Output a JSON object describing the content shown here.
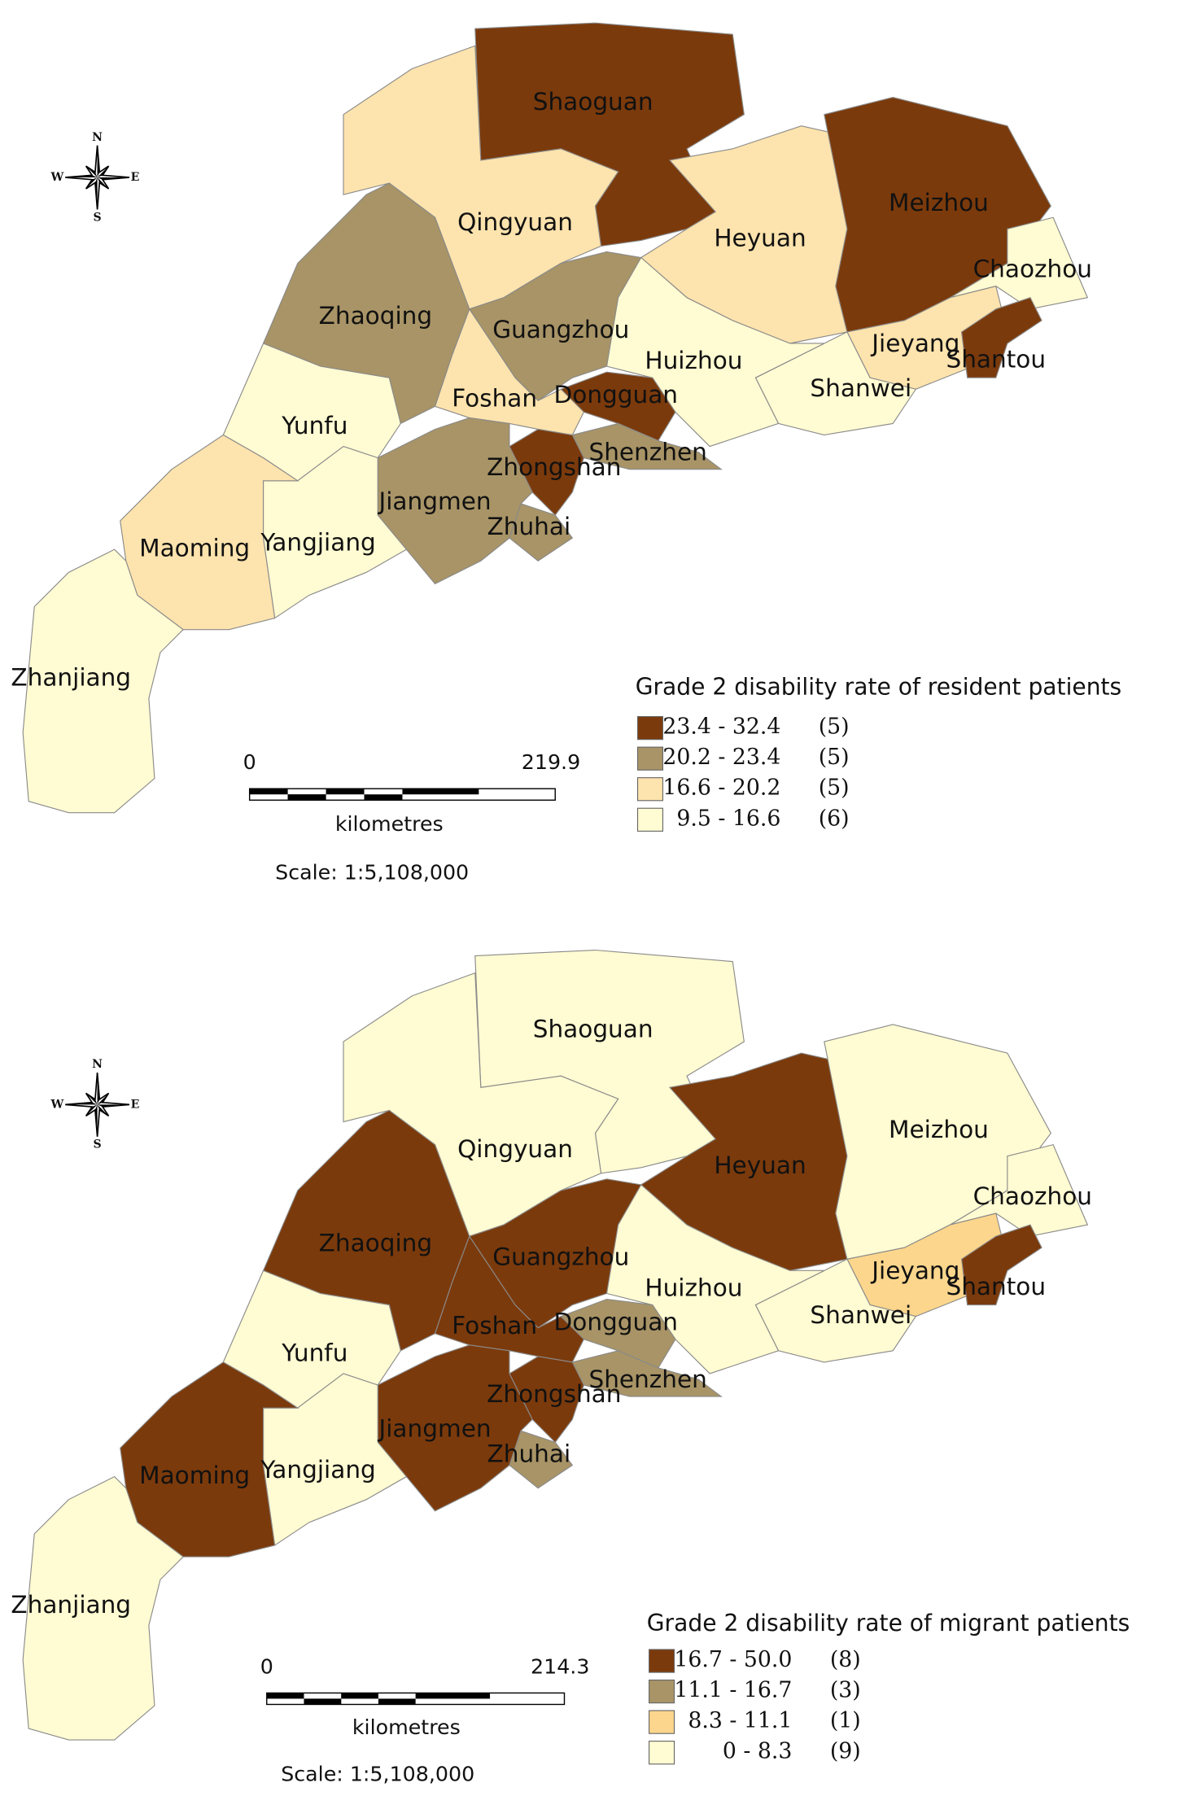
{
  "compass": {
    "n": "N",
    "s": "S",
    "e": "E",
    "w": "W"
  },
  "maps": [
    {
      "legend": {
        "title": "Grade 2 disability rate of resident patients",
        "entries": [
          {
            "range": "23.4 - 32.4",
            "count": "(5)",
            "color": "#7b3a0c"
          },
          {
            "range": "20.2 - 23.4",
            "count": "(5)",
            "color": "#a89466"
          },
          {
            "range": "16.6 - 20.2",
            "count": "(5)",
            "color": "#fde3ad"
          },
          {
            "range": "9.5 - 16.6",
            "count": "(6)",
            "color": "#fffbd2"
          }
        ]
      },
      "scale_bar": {
        "start": "0",
        "end": "219.9",
        "unit": "kilometres",
        "scale": "Scale: 1:5,108,000"
      },
      "regions": [
        {
          "name": "Shaoguan",
          "class": 0
        },
        {
          "name": "Qingyuan",
          "class": 2
        },
        {
          "name": "Heyuan",
          "class": 2
        },
        {
          "name": "Meizhou",
          "class": 0
        },
        {
          "name": "Chaozhou",
          "class": 3
        },
        {
          "name": "Jieyang",
          "class": 2
        },
        {
          "name": "Shantou",
          "class": 0
        },
        {
          "name": "Shanwei",
          "class": 3
        },
        {
          "name": "Huizhou",
          "class": 3
        },
        {
          "name": "Guangzhou",
          "class": 1
        },
        {
          "name": "Dongguan",
          "class": 0
        },
        {
          "name": "Shenzhen",
          "class": 1
        },
        {
          "name": "Foshan",
          "class": 2
        },
        {
          "name": "Zhaoqing",
          "class": 1
        },
        {
          "name": "Zhongshan",
          "class": 0
        },
        {
          "name": "Zhuhai",
          "class": 1
        },
        {
          "name": "Jiangmen",
          "class": 1
        },
        {
          "name": "Yunfu",
          "class": 3
        },
        {
          "name": "Yangjiang",
          "class": 3
        },
        {
          "name": "Maoming",
          "class": 2
        },
        {
          "name": "Zhanjiang",
          "class": 3
        }
      ]
    },
    {
      "legend": {
        "title": "Grade 2 disability rate of migrant patients",
        "entries": [
          {
            "range": "16.7 - 50.0",
            "count": "(8)",
            "color": "#7b3a0c"
          },
          {
            "range": "11.1 - 16.7",
            "count": "(3)",
            "color": "#a89466"
          },
          {
            "range": "8.3 - 11.1",
            "count": "(1)",
            "color": "#fcd68c"
          },
          {
            "range": "0 - 8.3",
            "count": "(9)",
            "color": "#fffbd2"
          }
        ]
      },
      "scale_bar": {
        "start": "0",
        "end": "214.3",
        "unit": "kilometres",
        "scale": "Scale: 1:5,108,000"
      },
      "regions": [
        {
          "name": "Shaoguan",
          "class": 3
        },
        {
          "name": "Qingyuan",
          "class": 3
        },
        {
          "name": "Heyuan",
          "class": 0
        },
        {
          "name": "Meizhou",
          "class": 3
        },
        {
          "name": "Chaozhou",
          "class": 3
        },
        {
          "name": "Jieyang",
          "class": 2
        },
        {
          "name": "Shantou",
          "class": 0
        },
        {
          "name": "Shanwei",
          "class": 3
        },
        {
          "name": "Huizhou",
          "class": 3
        },
        {
          "name": "Guangzhou",
          "class": 0
        },
        {
          "name": "Dongguan",
          "class": 1
        },
        {
          "name": "Shenzhen",
          "class": 1
        },
        {
          "name": "Foshan",
          "class": 0
        },
        {
          "name": "Zhaoqing",
          "class": 0
        },
        {
          "name": "Zhongshan",
          "class": 0
        },
        {
          "name": "Zhuhai",
          "class": 1
        },
        {
          "name": "Jiangmen",
          "class": 0
        },
        {
          "name": "Yunfu",
          "class": 3
        },
        {
          "name": "Yangjiang",
          "class": 3
        },
        {
          "name": "Maoming",
          "class": 0
        },
        {
          "name": "Zhanjiang",
          "class": 3
        }
      ]
    }
  ]
}
